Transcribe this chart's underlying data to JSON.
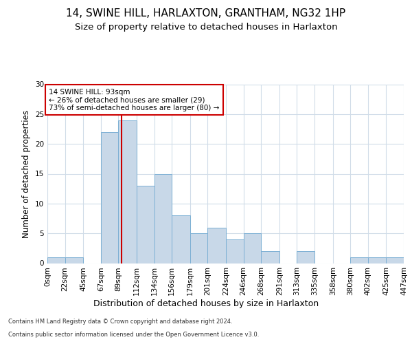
{
  "title1": "14, SWINE HILL, HARLAXTON, GRANTHAM, NG32 1HP",
  "title2": "Size of property relative to detached houses in Harlaxton",
  "xlabel": "Distribution of detached houses by size in Harlaxton",
  "ylabel": "Number of detached properties",
  "footer1": "Contains HM Land Registry data © Crown copyright and database right 2024.",
  "footer2": "Contains public sector information licensed under the Open Government Licence v3.0.",
  "bar_edges": [
    0,
    22,
    45,
    67,
    89,
    112,
    134,
    156,
    179,
    201,
    224,
    246,
    268,
    291,
    313,
    335,
    358,
    380,
    402,
    425,
    447
  ],
  "bar_heights": [
    1,
    1,
    0,
    22,
    24,
    13,
    15,
    8,
    5,
    6,
    4,
    5,
    2,
    0,
    2,
    0,
    0,
    1,
    1,
    1
  ],
  "bar_color": "#c8d8e8",
  "bar_edgecolor": "#7bafd4",
  "property_size": 93,
  "vline_color": "#cc0000",
  "annotation_line1": "14 SWINE HILL: 93sqm",
  "annotation_line2": "← 26% of detached houses are smaller (29)",
  "annotation_line3": "73% of semi-detached houses are larger (80) →",
  "annotation_box_edgecolor": "#cc0000",
  "annotation_box_facecolor": "white",
  "ylim": [
    0,
    30
  ],
  "yticks": [
    0,
    5,
    10,
    15,
    20,
    25,
    30
  ],
  "background_color": "#ffffff",
  "plot_background": "#ffffff",
  "grid_color": "#d0dce8",
  "title1_fontsize": 11,
  "title2_fontsize": 9.5,
  "xlabel_fontsize": 9,
  "ylabel_fontsize": 8.5,
  "tick_fontsize": 7.5,
  "annotation_fontsize": 7.5,
  "footer_fontsize": 6.0
}
